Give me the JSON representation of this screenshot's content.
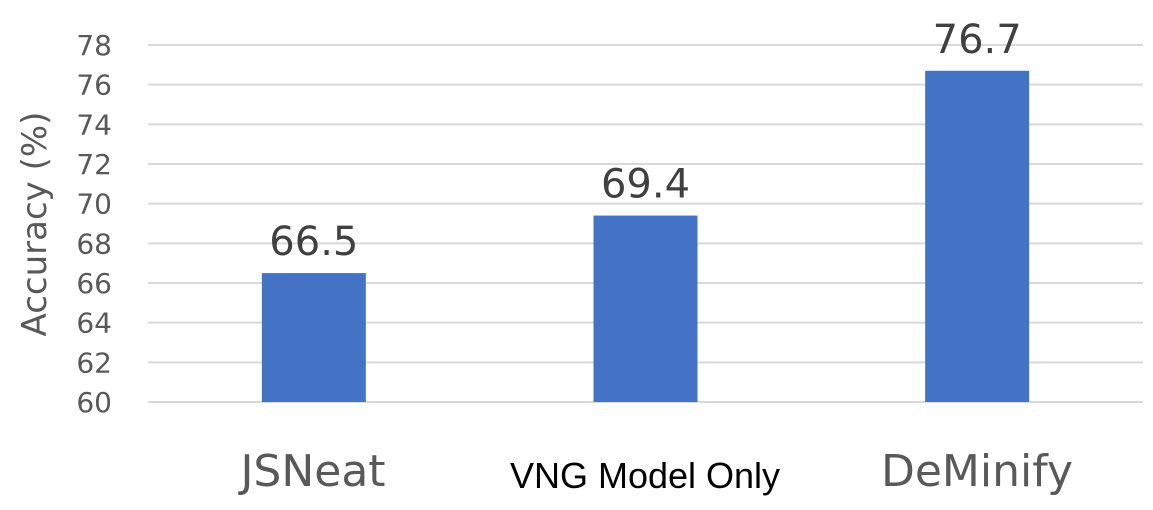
{
  "chart_data": {
    "type": "bar",
    "categories": [
      "JSNeat",
      "VNG Model Only",
      "DeMinify"
    ],
    "values": [
      66.5,
      69.4,
      76.7
    ],
    "data_labels": [
      "66.5",
      "69.4",
      "76.7"
    ],
    "title": "",
    "xlabel": "",
    "ylabel": "Accuracy (%)",
    "ylim": [
      60,
      78
    ],
    "yticks": [
      60,
      62,
      64,
      66,
      68,
      70,
      72,
      74,
      76,
      78
    ],
    "grid": true,
    "legend": "none",
    "bar_color": "#4472c4"
  }
}
